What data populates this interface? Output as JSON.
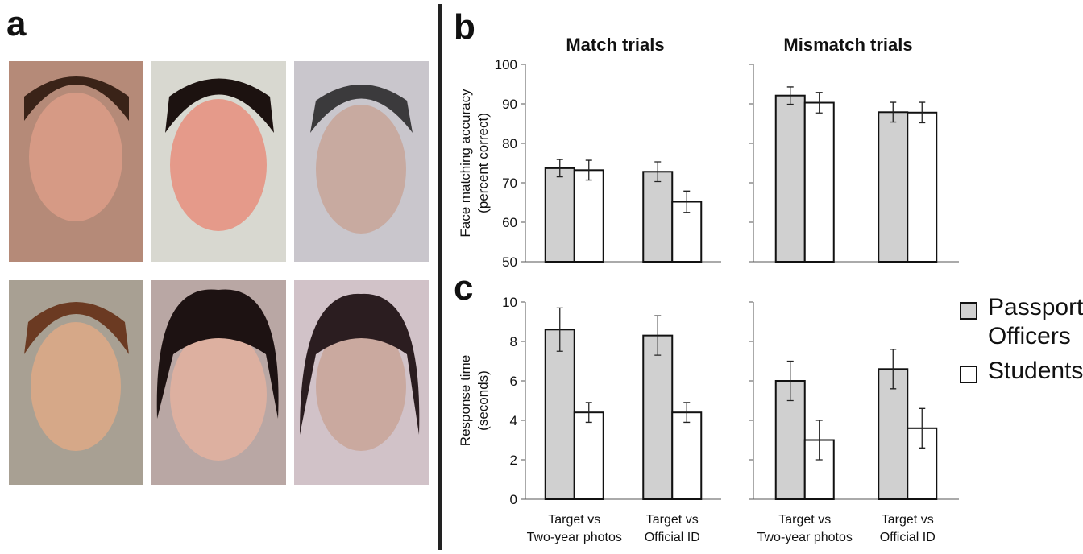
{
  "panel_labels": [
    "a",
    "b",
    "c"
  ],
  "chart_data": [
    {
      "type": "bar",
      "title": "Match trials",
      "ylabel": "Face matching accuracy (percent correct)",
      "categories": [
        null,
        null
      ],
      "series": [
        {
          "color": "#d0d0d0",
          "values": [
            73.7,
            72.8
          ],
          "errors": [
            2.2,
            2.5
          ]
        },
        {
          "color": "#ffffff",
          "values": [
            73.2,
            65.2
          ],
          "errors": [
            2.5,
            2.7
          ]
        }
      ],
      "ylim": [
        50,
        100
      ],
      "yticks": [
        50,
        60,
        70,
        80,
        90,
        100
      ]
    },
    {
      "type": "bar",
      "title": "Mismatch trials",
      "categories": [
        null,
        null
      ],
      "series": [
        {
          "color": "#d0d0d0",
          "values": [
            92.1,
            87.9
          ],
          "errors": [
            2.2,
            2.5
          ]
        },
        {
          "color": "#ffffff",
          "values": [
            90.3,
            87.8
          ],
          "errors": [
            2.6,
            2.6
          ]
        }
      ]
    },
    {
      "type": "bar",
      "ylabel": "Response time (seconds)",
      "categories": [
        "Target vs Two-year photos",
        "Target vs Official ID"
      ],
      "series": [
        {
          "name": "Passport Officers",
          "color": "#d0d0d0",
          "values": [
            8.6,
            8.3
          ],
          "errors": [
            1.1,
            1.0
          ]
        },
        {
          "name": "Students",
          "color": "#ffffff",
          "values": [
            4.4,
            4.4
          ],
          "errors": [
            0.5,
            0.5
          ]
        }
      ],
      "ylim": [
        0,
        10
      ],
      "yticks": [
        0,
        2,
        4,
        6,
        8,
        10
      ]
    },
    {
      "type": "bar",
      "categories": [
        "Target vs Two-year photos",
        "Target vs Official ID"
      ],
      "series": [
        {
          "color": "#d0d0d0",
          "values": [
            6.0,
            6.6
          ],
          "errors": [
            1.0,
            1.0
          ]
        },
        {
          "color": "#ffffff",
          "values": [
            3.0,
            3.6
          ],
          "errors": [
            1.0,
            1.0
          ]
        }
      ]
    }
  ]
}
